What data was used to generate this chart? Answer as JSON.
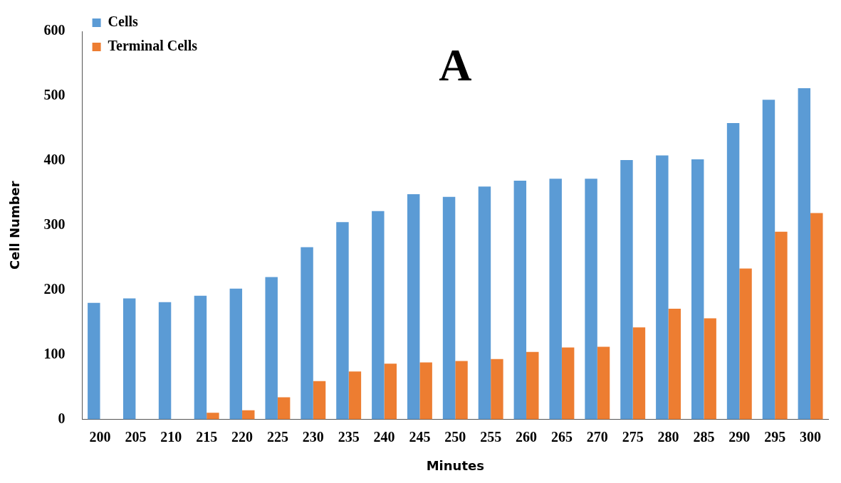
{
  "chart_data": {
    "type": "bar",
    "title": "A",
    "xlabel": "Minutes",
    "ylabel": "Cell Number",
    "categories": [
      "200",
      "205",
      "210",
      "215",
      "220",
      "225",
      "230",
      "235",
      "240",
      "245",
      "250",
      "255",
      "260",
      "265",
      "270",
      "275",
      "280",
      "285",
      "290",
      "295",
      "300"
    ],
    "series": [
      {
        "name": "Cells",
        "color": "#5b9bd5",
        "values": [
          180,
          187,
          181,
          191,
          202,
          220,
          266,
          305,
          322,
          348,
          344,
          360,
          369,
          372,
          372,
          401,
          408,
          402,
          458,
          494,
          512
        ]
      },
      {
        "name": "Terminal Cells",
        "color": "#ed7d31",
        "values": [
          0,
          0,
          0,
          10,
          14,
          34,
          59,
          74,
          86,
          88,
          90,
          93,
          104,
          111,
          112,
          142,
          171,
          156,
          233,
          290,
          319
        ]
      }
    ],
    "ylim": [
      0,
      600
    ],
    "yticks": [
      0,
      100,
      200,
      300,
      400,
      500,
      600
    ],
    "grid": false,
    "legend": "top left"
  }
}
